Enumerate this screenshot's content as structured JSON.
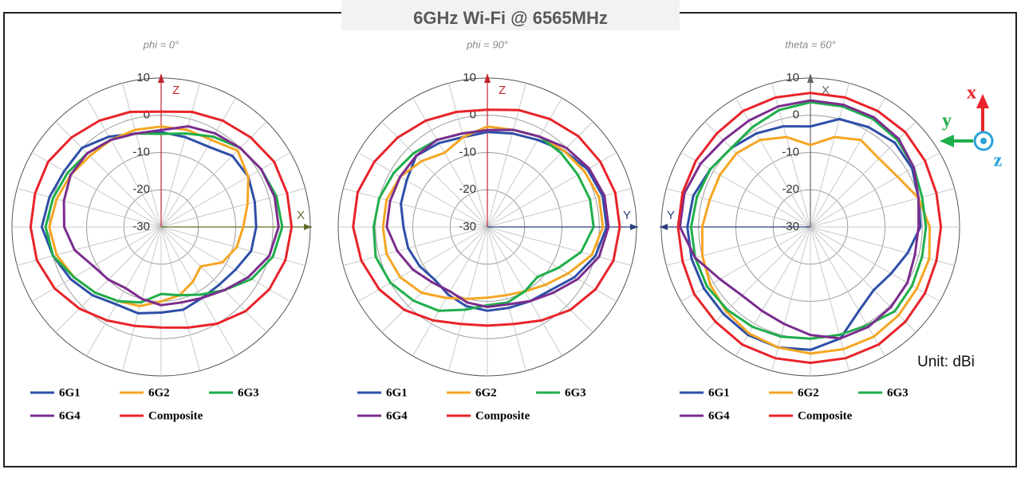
{
  "title": "6GHz Wi-Fi @ 6565MHz",
  "unit_note": "Unit: dBi",
  "axes_icon": {
    "x": "x",
    "y": "y",
    "z": "z"
  },
  "chart_data": [
    {
      "type": "polar",
      "title": "phi = 0°",
      "x": [
        0,
        15,
        30,
        45,
        60,
        75,
        90,
        105,
        120,
        135,
        150,
        165,
        180,
        195,
        210,
        225,
        240,
        255,
        270,
        285,
        300,
        315,
        330,
        345
      ],
      "rlim": [
        -30,
        10
      ],
      "rticks": [
        -30,
        -20,
        -10,
        0,
        10
      ],
      "axis_labels": {
        "up": "Z",
        "up_color": "#c0262c",
        "side": "X",
        "side_color": "#5f6b2a",
        "side_direction": "right"
      },
      "series": [
        {
          "name": "6G1",
          "color": "#2e4fa8",
          "values": [
            -4.5,
            -5,
            -5,
            -3,
            -3,
            -4,
            -4.5,
            -5,
            -7,
            -8,
            -8,
            -7,
            -7,
            -6,
            -6,
            -4,
            -2,
            0,
            2,
            1,
            0,
            0,
            -2,
            -4
          ]
        },
        {
          "name": "6G2",
          "color": "#f5a623",
          "values": [
            -3,
            -3,
            -3,
            -1,
            -3,
            -6,
            -8,
            -9,
            -11,
            -15,
            -13,
            -11,
            -10,
            -8,
            -7,
            -5,
            -3,
            -1,
            0,
            -1,
            -2,
            -3,
            -3,
            -3
          ]
        },
        {
          "name": "6G3",
          "color": "#1fae4b",
          "values": [
            -5,
            -4,
            -2,
            0,
            1,
            2,
            2.5,
            1,
            -2,
            -6,
            -9,
            -11,
            -12,
            -9,
            -7,
            -5,
            -3,
            0,
            1,
            0,
            -1,
            -2,
            -3,
            -4
          ]
        },
        {
          "name": "6G4",
          "color": "#7b2d8e",
          "values": [
            -4,
            -2,
            -1,
            0,
            1,
            1.5,
            1.5,
            0,
            -3,
            -6,
            -8,
            -9,
            -9,
            -10,
            -11,
            -10,
            -9,
            -6,
            -4,
            -3,
            -2,
            -2,
            -3,
            -4
          ]
        },
        {
          "name": "Composite",
          "color": "#e8232a",
          "values": [
            1,
            2,
            3,
            4,
            5,
            5,
            5,
            4.5,
            3.5,
            2,
            0,
            -2,
            -3,
            -2.5,
            -1,
            1,
            3,
            4.5,
            5,
            5,
            5,
            4,
            3,
            2
          ]
        }
      ]
    },
    {
      "type": "polar",
      "title": "phi = 90°",
      "x": [
        0,
        15,
        30,
        45,
        60,
        75,
        90,
        105,
        120,
        135,
        150,
        165,
        180,
        195,
        210,
        225,
        240,
        255,
        270,
        285,
        300,
        315,
        330,
        345
      ],
      "rlim": [
        -30,
        10
      ],
      "rticks": [
        -30,
        -20,
        -10,
        0,
        10
      ],
      "axis_labels": {
        "up": "Z",
        "up_color": "#c0262c",
        "side": "Y",
        "side_color": "#2a3f7a",
        "side_direction": "right"
      },
      "series": [
        {
          "name": "6G1",
          "color": "#2e4fa8",
          "values": [
            -4.5,
            -4,
            -3,
            -1,
            1,
            2,
            2,
            0,
            -3,
            -6,
            -7,
            -7.5,
            -7.5,
            -8,
            -9,
            -10,
            -9,
            -8,
            -7.5,
            -6,
            -5,
            -3,
            -4,
            -5
          ]
        },
        {
          "name": "6G2",
          "color": "#f5a623",
          "values": [
            -3,
            -3,
            -2,
            -1,
            0,
            1,
            1,
            -1,
            -5,
            -8,
            -10,
            -11,
            -11,
            -10,
            -8,
            -5,
            -3,
            -2,
            -2,
            -2,
            -3,
            -5,
            -7,
            -5
          ]
        },
        {
          "name": "6G3",
          "color": "#1fae4b",
          "values": [
            -4,
            -3,
            -2,
            -2,
            -2,
            -1.5,
            -1.5,
            -4,
            -8,
            -11,
            -10,
            -9,
            -9,
            -7,
            -4,
            -2,
            0,
            1,
            0.5,
            0,
            -1,
            -2,
            -3,
            -4
          ]
        },
        {
          "name": "6G4",
          "color": "#7b2d8e",
          "values": [
            -4,
            -3,
            -2,
            0,
            1.5,
            2.5,
            2.5,
            1,
            -2,
            -5,
            -7,
            -8.5,
            -8.5,
            -9,
            -10,
            -9,
            -7,
            -5,
            -3,
            -3,
            -3,
            -3,
            -3,
            -4
          ]
        },
        {
          "name": "Composite",
          "color": "#e8232a",
          "values": [
            1.5,
            2.5,
            3.5,
            4.5,
            5,
            5.5,
            5.5,
            5,
            3.5,
            1.5,
            -1,
            -3,
            -3.5,
            -3,
            -1,
            1.5,
            3.5,
            5,
            6,
            6,
            5,
            4,
            3,
            2
          ]
        }
      ]
    },
    {
      "type": "polar",
      "title": "theta = 60°",
      "x": [
        0,
        15,
        30,
        45,
        60,
        75,
        90,
        105,
        120,
        135,
        150,
        165,
        180,
        195,
        210,
        225,
        240,
        255,
        270,
        285,
        300,
        315,
        330,
        345
      ],
      "rlim": [
        -30,
        10
      ],
      "rticks": [
        -30,
        -20,
        -10,
        0,
        10
      ],
      "axis_labels": {
        "up": "X",
        "up_color": "#666666",
        "side": "Y",
        "side_color": "#2a3f7a",
        "side_direction": "left"
      },
      "series": [
        {
          "name": "6G1",
          "color": "#2e4fa8",
          "values": [
            -3,
            0,
            1,
            2,
            1.5,
            0,
            -0.5,
            -3,
            -5,
            -6,
            -4,
            1,
            3,
            3.5,
            3.5,
            3,
            3,
            3,
            3,
            2.5,
            1,
            0,
            -1,
            -2
          ]
        },
        {
          "name": "6G2",
          "color": "#f5a623",
          "values": [
            -8,
            -5,
            -3,
            -4,
            -3,
            0,
            2,
            3,
            3,
            3.5,
            4,
            4,
            4,
            3.5,
            3,
            2,
            1,
            0,
            -1,
            -2,
            -2,
            -2,
            -3,
            -5
          ]
        },
        {
          "name": "6G3",
          "color": "#1fae4b",
          "values": [
            3.5,
            3.5,
            3.5,
            3,
            2,
            1,
            1,
            1,
            1.5,
            2,
            0.5,
            0,
            0,
            0.5,
            1,
            1.5,
            2,
            2,
            2,
            1.5,
            1,
            0,
            1,
            2.5
          ]
        },
        {
          "name": "6G4",
          "color": "#7b2d8e",
          "values": [
            4,
            4,
            4,
            3.5,
            2,
            0,
            -1,
            -1,
            0,
            0.5,
            1,
            1,
            -1,
            -3,
            -4,
            -4,
            -2,
            2,
            5,
            5,
            4,
            3,
            3,
            3.5
          ]
        },
        {
          "name": "Composite",
          "color": "#e8232a",
          "values": [
            6,
            6,
            6,
            6,
            5.5,
            5,
            5,
            5,
            5.5,
            6,
            6.5,
            6.5,
            6.5,
            6.5,
            6.5,
            6,
            6,
            5.5,
            5.5,
            5.5,
            5.5,
            5.5,
            6,
            6
          ]
        }
      ]
    }
  ]
}
